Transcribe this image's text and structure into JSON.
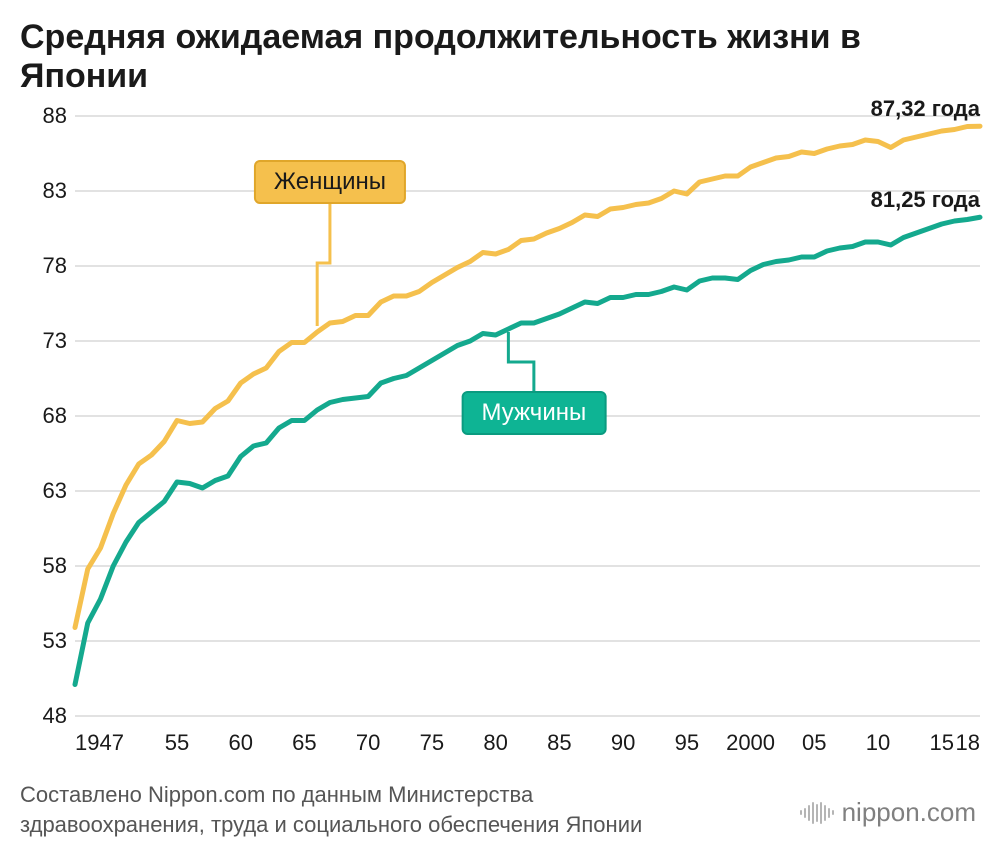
{
  "title": "Средняя ожидаемая продолжительность жизни\nв Японии",
  "source": "Составлено Nippon.com по данным Министерства здравоохранения, труда и социального обеспечения Японии",
  "brand": "nippon.com",
  "chart": {
    "type": "line",
    "background_color": "#ffffff",
    "grid_color": "#e2e2e2",
    "line_width": 5,
    "xlim": [
      1947,
      2018
    ],
    "ylim": [
      48,
      88
    ],
    "y_ticks": [
      48,
      53,
      58,
      63,
      68,
      73,
      78,
      83,
      88
    ],
    "x_ticks": [
      {
        "value": 1947,
        "label": "1947"
      },
      {
        "value": 1955,
        "label": "55"
      },
      {
        "value": 1960,
        "label": "60"
      },
      {
        "value": 1965,
        "label": "65"
      },
      {
        "value": 1970,
        "label": "70"
      },
      {
        "value": 1975,
        "label": "75"
      },
      {
        "value": 1980,
        "label": "80"
      },
      {
        "value": 1985,
        "label": "85"
      },
      {
        "value": 1990,
        "label": "90"
      },
      {
        "value": 1995,
        "label": "95"
      },
      {
        "value": 2000,
        "label": "2000"
      },
      {
        "value": 2005,
        "label": "05"
      },
      {
        "value": 2010,
        "label": "10"
      },
      {
        "value": 2015,
        "label": "15"
      },
      {
        "value": 2018,
        "label": "18"
      }
    ],
    "series": [
      {
        "id": "women",
        "label": "Женщины",
        "color": "#f5c04d",
        "legend_bg": "#f5c04d",
        "legend_border": "#e0a62a",
        "legend_text_color": "#1a1a1a",
        "end_label": "87,32 года",
        "end_value": 87.32,
        "legend_pos": {
          "x_year": 1967,
          "y_val": 83.6
        },
        "callout_from": {
          "x_year": 1967,
          "y_val": 82.4
        },
        "callout_to": {
          "x_year": 1966,
          "y_val": 74.0
        },
        "data": [
          [
            1947,
            53.9
          ],
          [
            1948,
            57.8
          ],
          [
            1949,
            59.2
          ],
          [
            1950,
            61.5
          ],
          [
            1951,
            63.4
          ],
          [
            1952,
            64.8
          ],
          [
            1953,
            65.4
          ],
          [
            1954,
            66.3
          ],
          [
            1955,
            67.7
          ],
          [
            1956,
            67.5
          ],
          [
            1957,
            67.6
          ],
          [
            1958,
            68.5
          ],
          [
            1959,
            69.0
          ],
          [
            1960,
            70.2
          ],
          [
            1961,
            70.8
          ],
          [
            1962,
            71.2
          ],
          [
            1963,
            72.3
          ],
          [
            1964,
            72.9
          ],
          [
            1965,
            72.9
          ],
          [
            1966,
            73.6
          ],
          [
            1967,
            74.2
          ],
          [
            1968,
            74.3
          ],
          [
            1969,
            74.7
          ],
          [
            1970,
            74.7
          ],
          [
            1971,
            75.6
          ],
          [
            1972,
            76.0
          ],
          [
            1973,
            76.0
          ],
          [
            1974,
            76.3
          ],
          [
            1975,
            76.9
          ],
          [
            1976,
            77.4
          ],
          [
            1977,
            77.9
          ],
          [
            1978,
            78.3
          ],
          [
            1979,
            78.9
          ],
          [
            1980,
            78.8
          ],
          [
            1981,
            79.1
          ],
          [
            1982,
            79.7
          ],
          [
            1983,
            79.8
          ],
          [
            1984,
            80.2
          ],
          [
            1985,
            80.5
          ],
          [
            1986,
            80.9
          ],
          [
            1987,
            81.4
          ],
          [
            1988,
            81.3
          ],
          [
            1989,
            81.8
          ],
          [
            1990,
            81.9
          ],
          [
            1991,
            82.1
          ],
          [
            1992,
            82.2
          ],
          [
            1993,
            82.5
          ],
          [
            1994,
            83.0
          ],
          [
            1995,
            82.8
          ],
          [
            1996,
            83.6
          ],
          [
            1997,
            83.8
          ],
          [
            1998,
            84.0
          ],
          [
            1999,
            84.0
          ],
          [
            2000,
            84.6
          ],
          [
            2001,
            84.9
          ],
          [
            2002,
            85.2
          ],
          [
            2003,
            85.3
          ],
          [
            2004,
            85.6
          ],
          [
            2005,
            85.5
          ],
          [
            2006,
            85.8
          ],
          [
            2007,
            86.0
          ],
          [
            2008,
            86.1
          ],
          [
            2009,
            86.4
          ],
          [
            2010,
            86.3
          ],
          [
            2011,
            85.9
          ],
          [
            2012,
            86.4
          ],
          [
            2013,
            86.6
          ],
          [
            2014,
            86.8
          ],
          [
            2015,
            87.0
          ],
          [
            2016,
            87.1
          ],
          [
            2017,
            87.3
          ],
          [
            2018,
            87.32
          ]
        ]
      },
      {
        "id": "men",
        "label": "Мужчины",
        "color": "#14a98e",
        "legend_bg": "#0eb494",
        "legend_border": "#0a9b80",
        "legend_text_color": "#ffffff",
        "end_label": "81,25 года",
        "end_value": 81.25,
        "legend_pos": {
          "x_year": 1983,
          "y_val": 68.2
        },
        "callout_from": {
          "x_year": 1983,
          "y_val": 69.6
        },
        "callout_to": {
          "x_year": 1981,
          "y_val": 73.6
        },
        "data": [
          [
            1947,
            50.1
          ],
          [
            1948,
            54.2
          ],
          [
            1949,
            55.8
          ],
          [
            1950,
            58.0
          ],
          [
            1951,
            59.6
          ],
          [
            1952,
            60.9
          ],
          [
            1953,
            61.6
          ],
          [
            1954,
            62.3
          ],
          [
            1955,
            63.6
          ],
          [
            1956,
            63.5
          ],
          [
            1957,
            63.2
          ],
          [
            1958,
            63.7
          ],
          [
            1959,
            64.0
          ],
          [
            1960,
            65.3
          ],
          [
            1961,
            66.0
          ],
          [
            1962,
            66.2
          ],
          [
            1963,
            67.2
          ],
          [
            1964,
            67.7
          ],
          [
            1965,
            67.7
          ],
          [
            1966,
            68.4
          ],
          [
            1967,
            68.9
          ],
          [
            1968,
            69.1
          ],
          [
            1969,
            69.2
          ],
          [
            1970,
            69.3
          ],
          [
            1971,
            70.2
          ],
          [
            1972,
            70.5
          ],
          [
            1973,
            70.7
          ],
          [
            1974,
            71.2
          ],
          [
            1975,
            71.7
          ],
          [
            1976,
            72.2
          ],
          [
            1977,
            72.7
          ],
          [
            1978,
            73.0
          ],
          [
            1979,
            73.5
          ],
          [
            1980,
            73.4
          ],
          [
            1981,
            73.8
          ],
          [
            1982,
            74.2
          ],
          [
            1983,
            74.2
          ],
          [
            1984,
            74.5
          ],
          [
            1985,
            74.8
          ],
          [
            1986,
            75.2
          ],
          [
            1987,
            75.6
          ],
          [
            1988,
            75.5
          ],
          [
            1989,
            75.9
          ],
          [
            1990,
            75.9
          ],
          [
            1991,
            76.1
          ],
          [
            1992,
            76.1
          ],
          [
            1993,
            76.3
          ],
          [
            1994,
            76.6
          ],
          [
            1995,
            76.4
          ],
          [
            1996,
            77.0
          ],
          [
            1997,
            77.2
          ],
          [
            1998,
            77.2
          ],
          [
            1999,
            77.1
          ],
          [
            2000,
            77.7
          ],
          [
            2001,
            78.1
          ],
          [
            2002,
            78.3
          ],
          [
            2003,
            78.4
          ],
          [
            2004,
            78.6
          ],
          [
            2005,
            78.6
          ],
          [
            2006,
            79.0
          ],
          [
            2007,
            79.2
          ],
          [
            2008,
            79.3
          ],
          [
            2009,
            79.6
          ],
          [
            2010,
            79.6
          ],
          [
            2011,
            79.4
          ],
          [
            2012,
            79.9
          ],
          [
            2013,
            80.2
          ],
          [
            2014,
            80.5
          ],
          [
            2015,
            80.8
          ],
          [
            2016,
            81.0
          ],
          [
            2017,
            81.1
          ],
          [
            2018,
            81.25
          ]
        ]
      }
    ]
  }
}
